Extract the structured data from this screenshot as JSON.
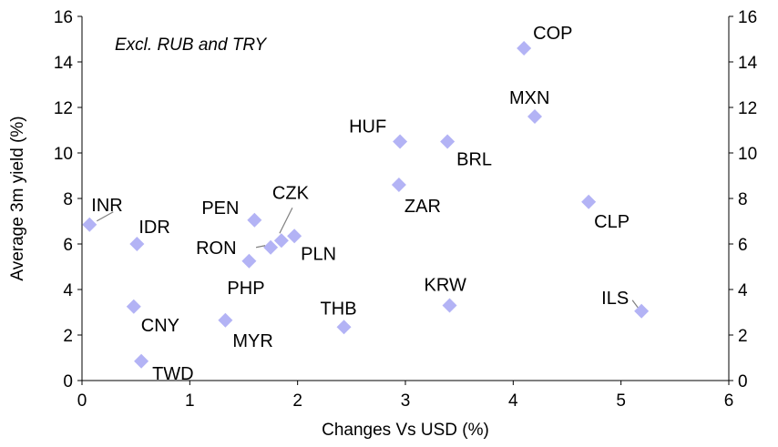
{
  "chart_data": {
    "type": "scatter",
    "annotation": "Excl. RUB and TRY",
    "xlabel": "Changes Vs USD (%)",
    "ylabel": "Average 3m yield (%)",
    "xlim": [
      0,
      6
    ],
    "ylim": [
      0,
      16
    ],
    "x_ticks": [
      0,
      1,
      2,
      3,
      4,
      5,
      6
    ],
    "y_ticks": [
      0,
      2,
      4,
      6,
      8,
      10,
      12,
      14,
      16
    ],
    "secondary_y_axis": true,
    "grid": false,
    "marker_color": "#b3b3f5",
    "points": [
      {
        "label": "COP",
        "x": 4.1,
        "y": 14.6
      },
      {
        "label": "MXN",
        "x": 4.2,
        "y": 11.6
      },
      {
        "label": "HUF",
        "x": 2.95,
        "y": 10.5
      },
      {
        "label": "BRL",
        "x": 3.39,
        "y": 10.5
      },
      {
        "label": "ZAR",
        "x": 2.94,
        "y": 8.6
      },
      {
        "label": "CLP",
        "x": 4.7,
        "y": 7.85
      },
      {
        "label": "INR",
        "x": 0.07,
        "y": 6.85
      },
      {
        "label": "PEN",
        "x": 1.6,
        "y": 7.05
      },
      {
        "label": "CZK",
        "x": 1.85,
        "y": 6.15
      },
      {
        "label": "PLN",
        "x": 1.97,
        "y": 6.35
      },
      {
        "label": "RON",
        "x": 1.75,
        "y": 5.85
      },
      {
        "label": "IDR",
        "x": 0.51,
        "y": 6.0
      },
      {
        "label": "PHP",
        "x": 1.55,
        "y": 5.25
      },
      {
        "label": "KRW",
        "x": 3.41,
        "y": 3.3
      },
      {
        "label": "ILS",
        "x": 5.19,
        "y": 3.05
      },
      {
        "label": "CNY",
        "x": 0.48,
        "y": 3.25
      },
      {
        "label": "MYR",
        "x": 1.33,
        "y": 2.65
      },
      {
        "label": "THB",
        "x": 2.43,
        "y": 2.35
      },
      {
        "label": "TWD",
        "x": 0.55,
        "y": 0.85
      }
    ]
  }
}
